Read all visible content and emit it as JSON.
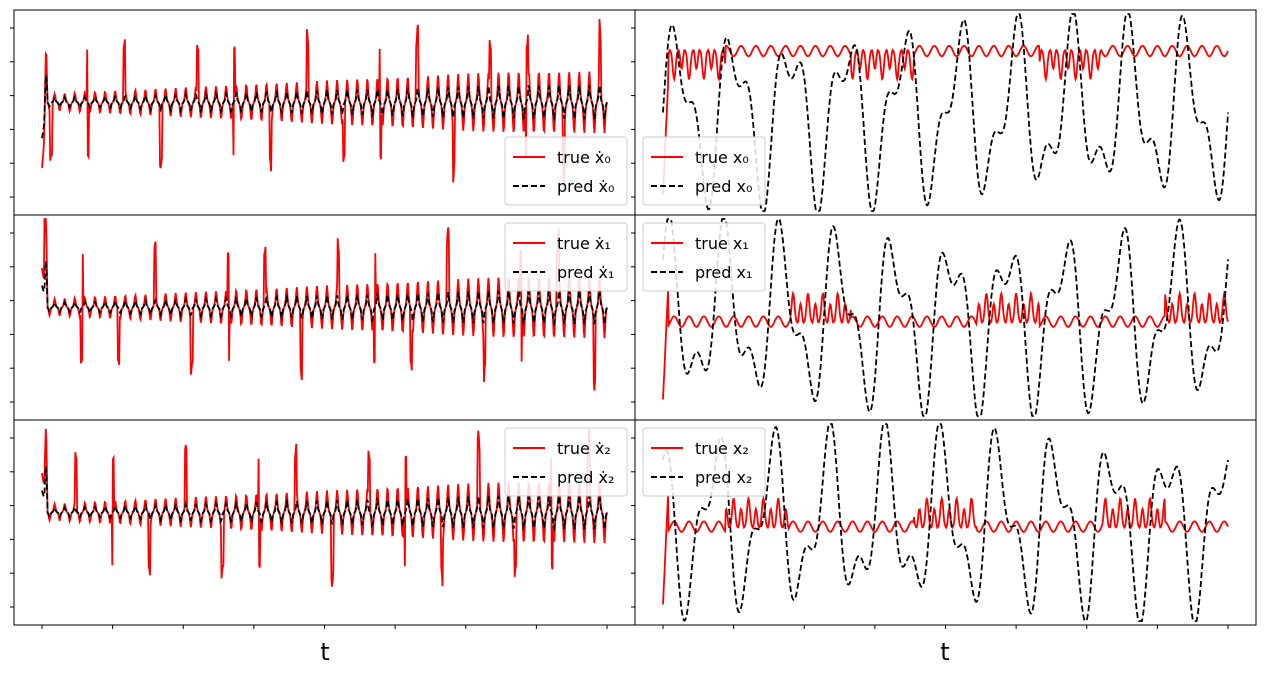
{
  "figure": {
    "xlabels": [
      "t",
      "t"
    ],
    "colors": {
      "true": "#ff0000",
      "pred": "#000000"
    }
  },
  "chart_data": [
    {
      "type": "line",
      "panel": "left-row-1",
      "legend": [
        "true ẋ₀",
        "pred ẋ₀"
      ],
      "legend_pos": "lower-right",
      "series": [
        {
          "name": "true ẋ₀",
          "style": "solid",
          "color": "#ff0000"
        },
        {
          "name": "pred ẋ₀",
          "style": "dashed",
          "color": "#000000"
        }
      ]
    },
    {
      "type": "line",
      "panel": "left-row-2",
      "legend": [
        "true ẋ₁",
        "pred ẋ₁"
      ],
      "legend_pos": "upper-right",
      "series": [
        {
          "name": "true ẋ₁",
          "style": "solid",
          "color": "#ff0000"
        },
        {
          "name": "pred ẋ₁",
          "style": "dashed",
          "color": "#000000"
        }
      ]
    },
    {
      "type": "line",
      "panel": "left-row-3",
      "legend": [
        "true ẋ₂",
        "pred ẋ₂"
      ],
      "legend_pos": "upper-right",
      "xlabel": "t",
      "series": [
        {
          "name": "true ẋ₂",
          "style": "solid",
          "color": "#ff0000"
        },
        {
          "name": "pred ẋ₂",
          "style": "dashed",
          "color": "#000000"
        }
      ]
    },
    {
      "type": "line",
      "panel": "right-row-1",
      "legend": [
        "true x₀",
        "pred x₀"
      ],
      "legend_pos": "lower-left",
      "series": [
        {
          "name": "true x₀",
          "style": "solid",
          "color": "#ff0000"
        },
        {
          "name": "pred x₀",
          "style": "dashed",
          "color": "#000000"
        }
      ]
    },
    {
      "type": "line",
      "panel": "right-row-2",
      "legend": [
        "true x₁",
        "pred x₁"
      ],
      "legend_pos": "upper-left",
      "series": [
        {
          "name": "true x₁",
          "style": "solid",
          "color": "#ff0000"
        },
        {
          "name": "pred x₁",
          "style": "dashed",
          "color": "#000000"
        }
      ]
    },
    {
      "type": "line",
      "panel": "right-row-3",
      "legend": [
        "true x₂",
        "pred x₂"
      ],
      "legend_pos": "upper-left",
      "xlabel": "t",
      "series": [
        {
          "name": "true x₂",
          "style": "solid",
          "color": "#ff0000"
        },
        {
          "name": "pred x₂",
          "style": "dashed",
          "color": "#000000"
        }
      ]
    }
  ]
}
